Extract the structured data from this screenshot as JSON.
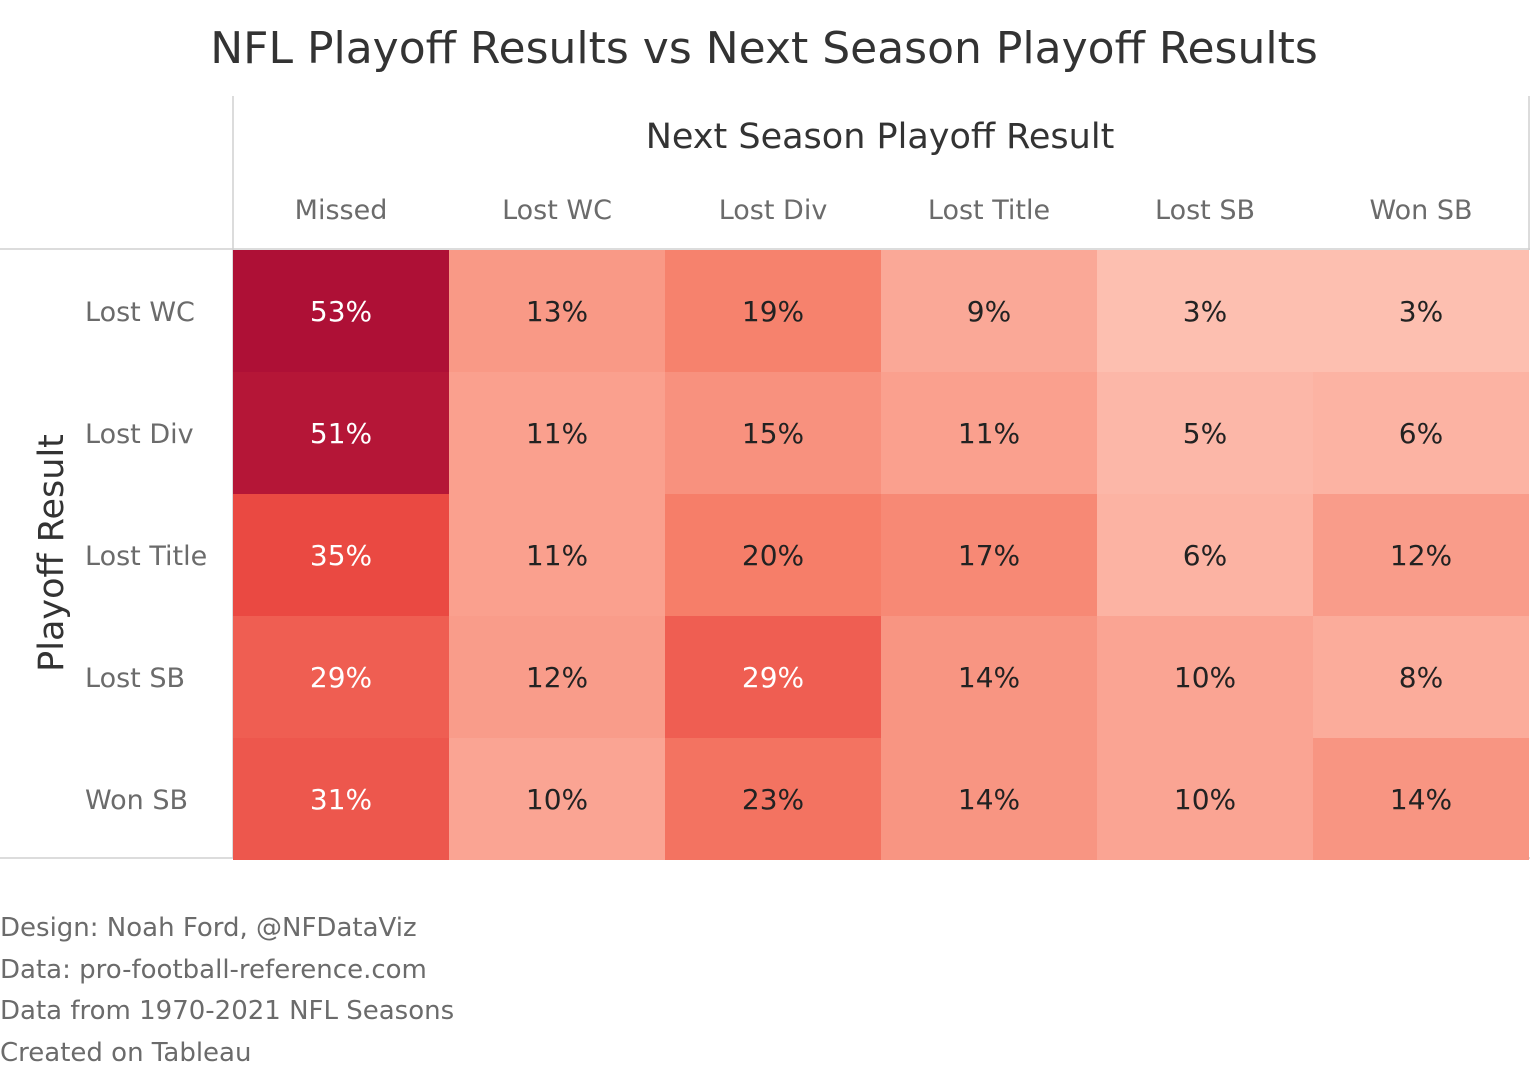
{
  "chart_data": {
    "type": "heatmap",
    "title": "NFL Playoff Results vs Next Season Playoff Results",
    "xlabel": "Next Season Playoff Result",
    "ylabel": "Playoff Result",
    "x_categories": [
      "Missed",
      "Lost WC",
      "Lost Div",
      "Lost Title",
      "Lost SB",
      "Won SB"
    ],
    "y_categories": [
      "Lost WC",
      "Lost Div",
      "Lost Title",
      "Lost SB",
      "Won SB"
    ],
    "values": [
      [
        53,
        13,
        19,
        9,
        3,
        3
      ],
      [
        51,
        11,
        15,
        11,
        5,
        6
      ],
      [
        35,
        11,
        20,
        17,
        6,
        12
      ],
      [
        29,
        12,
        29,
        14,
        10,
        8
      ],
      [
        31,
        10,
        23,
        14,
        10,
        14
      ]
    ],
    "labels": [
      [
        "53%",
        "13%",
        "19%",
        "9%",
        "3%",
        "3%"
      ],
      [
        "51%",
        "11%",
        "15%",
        "11%",
        "5%",
        "6%"
      ],
      [
        "35%",
        "11%",
        "20%",
        "17%",
        "6%",
        "12%"
      ],
      [
        "29%",
        "12%",
        "29%",
        "14%",
        "10%",
        "8%"
      ],
      [
        "31%",
        "10%",
        "23%",
        "14%",
        "10%",
        "14%"
      ]
    ],
    "value_unit": "%",
    "color_scale": [
      "#fdbfb0",
      "#f67f6a",
      "#e9443f",
      "#ae1036"
    ],
    "grid": false
  },
  "footer": {
    "line1": "Design: Noah Ford, @NFDataViz",
    "line2": "Data: pro-football-reference.com",
    "line3": "Data from 1970-2021 NFL Seasons",
    "line4": "Created on Tableau"
  }
}
